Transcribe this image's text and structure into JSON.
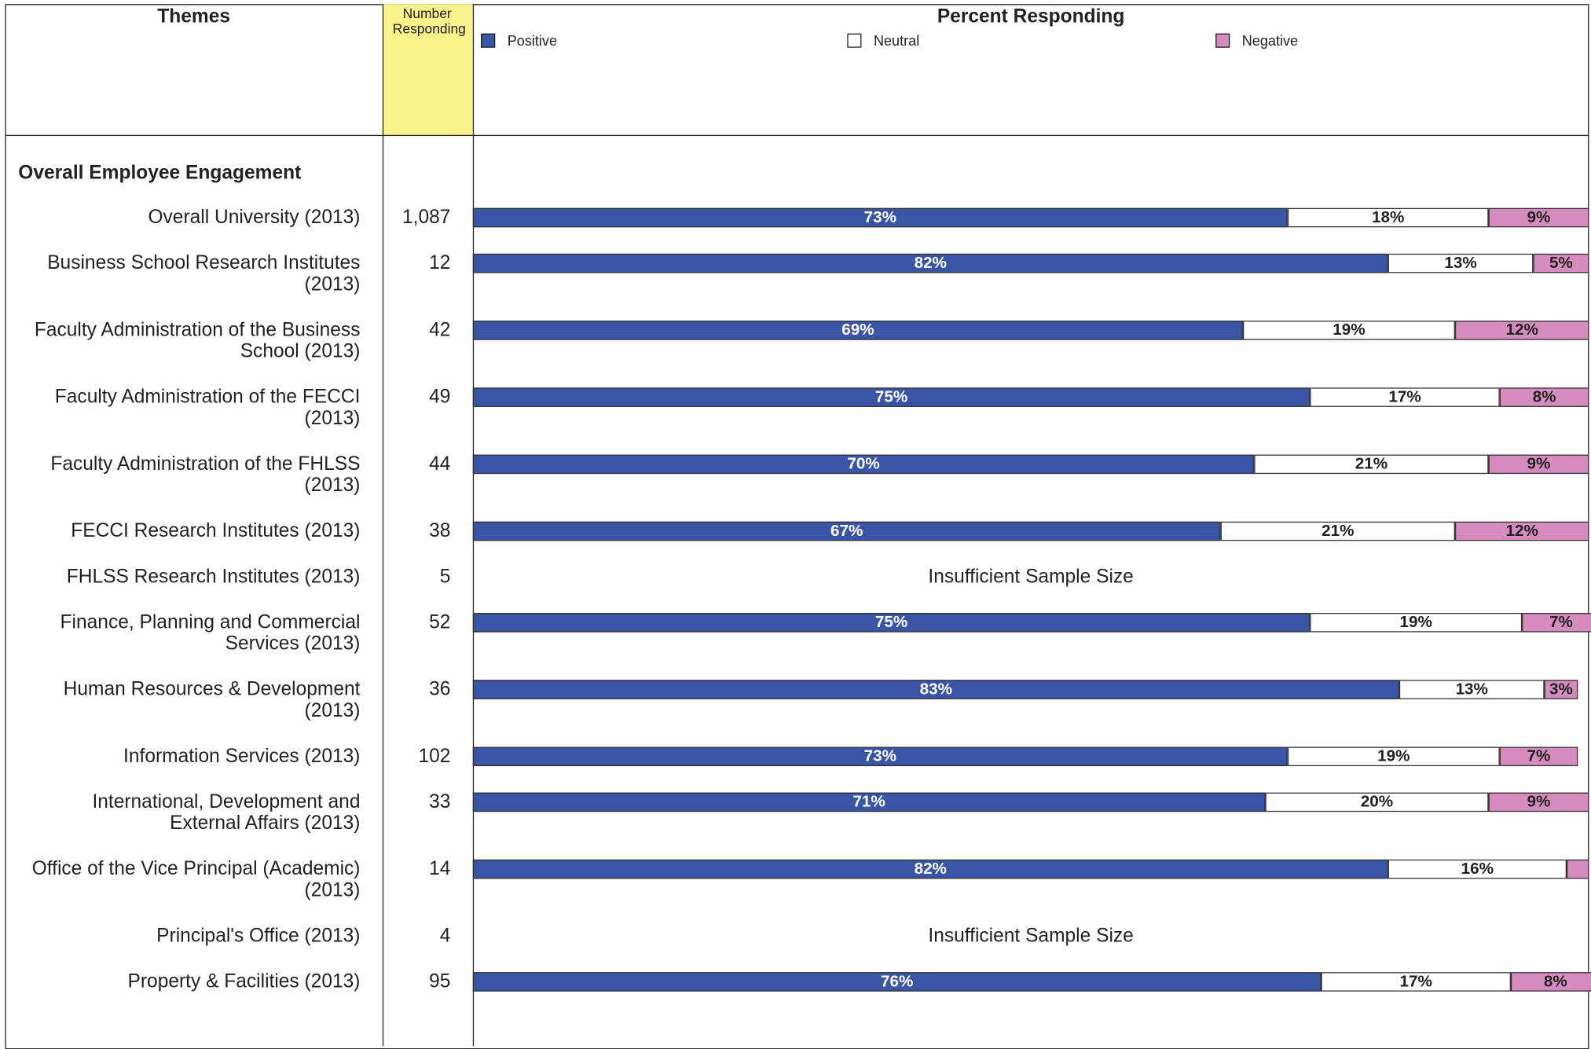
{
  "chart_data": {
    "type": "stacked-bar",
    "orientation": "horizontal",
    "title": "Percent Responding",
    "theme_header": "Themes",
    "count_header": "Number Responding",
    "group": "Overall Employee Engagement",
    "xlim": [
      0,
      100
    ],
    "categories": [
      "Overall University (2013)",
      "Business School Research Institutes (2013)",
      "Faculty Administration of the Business School (2013)",
      "Faculty Administration of the FECCI (2013)",
      "Faculty Administration of the FHLSS (2013)",
      "FECCI Research Institutes (2013)",
      "FHLSS Research Institutes (2013)",
      "Finance, Planning and Commercial Services (2013)",
      "Human Resources & Development (2013)",
      "Information Services (2013)",
      "International, Development and External Affairs (2013)",
      "Office of the Vice Principal (Academic) (2013)",
      "Principal's Office (2013)",
      "Property & Facilities (2013)"
    ],
    "counts": [
      "1,087",
      "12",
      "42",
      "49",
      "44",
      "38",
      "5",
      "52",
      "36",
      "102",
      "33",
      "14",
      "4",
      "95"
    ],
    "notes": [
      null,
      null,
      null,
      null,
      null,
      null,
      "Insufficient Sample Size",
      null,
      null,
      null,
      null,
      null,
      "Insufficient Sample Size",
      null
    ],
    "series": [
      {
        "name": "Positive",
        "color": "#3a55a6",
        "text_color": "#ffffff",
        "values": [
          73,
          82,
          69,
          75,
          70,
          67,
          null,
          75,
          83,
          73,
          71,
          82,
          null,
          76
        ],
        "value_labels": [
          "73%",
          "82%",
          "69%",
          "75%",
          "70%",
          "67%",
          null,
          "75%",
          "83%",
          "73%",
          "71%",
          "82%",
          null,
          "76%"
        ]
      },
      {
        "name": "Neutral",
        "color": "#ffffff",
        "text_color": "#222222",
        "values": [
          18,
          13,
          19,
          17,
          21,
          21,
          null,
          19,
          13,
          19,
          20,
          16,
          null,
          17
        ],
        "value_labels": [
          "18%",
          "13%",
          "19%",
          "17%",
          "21%",
          "21%",
          null,
          "19%",
          "13%",
          "19%",
          "20%",
          "16%",
          null,
          "17%"
        ]
      },
      {
        "name": "Negative",
        "color": "#d68cbf",
        "text_color": "#222222",
        "values": [
          9,
          5,
          12,
          8,
          9,
          12,
          null,
          7,
          3,
          7,
          9,
          2,
          null,
          8
        ],
        "value_labels": [
          "9%",
          "5%",
          "12%",
          "8%",
          "9%",
          "12%",
          null,
          "7%",
          "3%",
          "7%",
          "9%",
          null,
          null,
          "8%"
        ]
      }
    ]
  }
}
